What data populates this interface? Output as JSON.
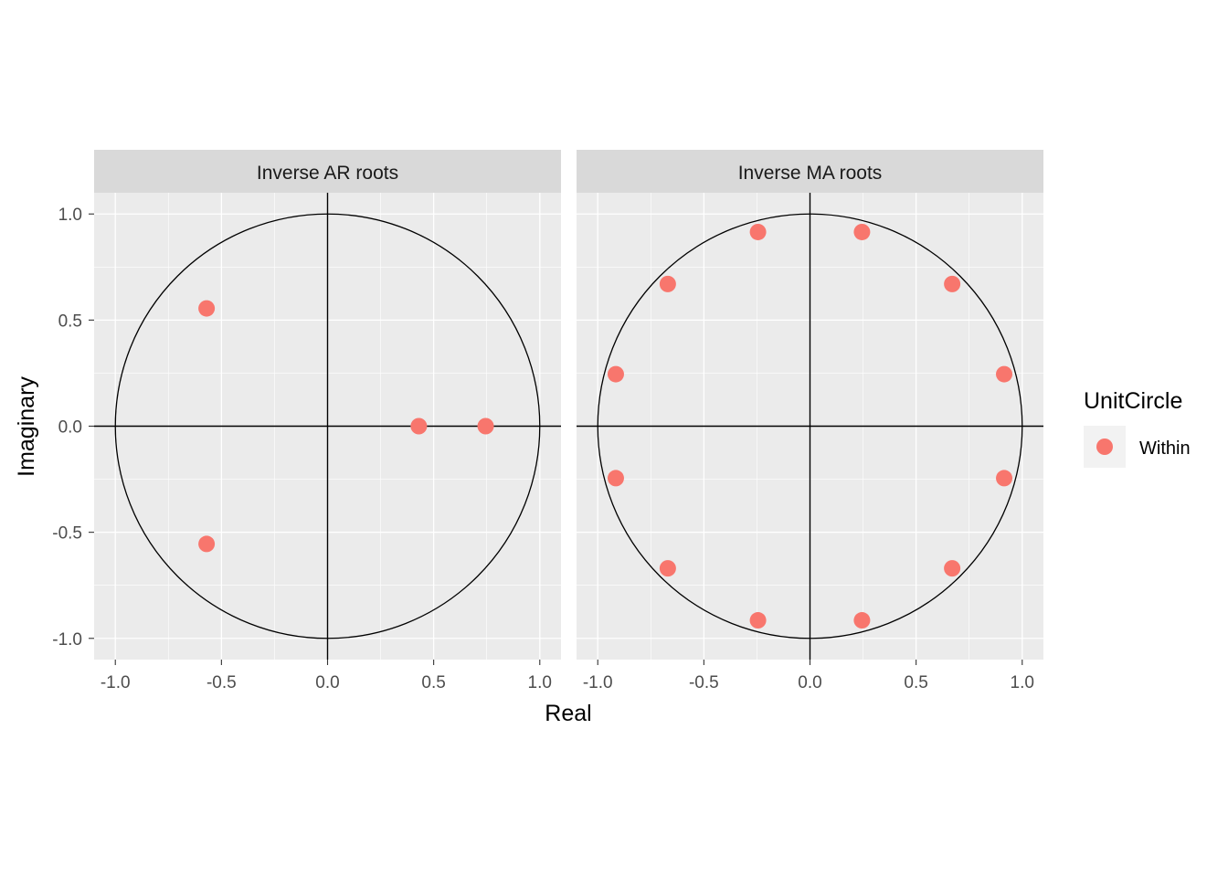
{
  "chart_data": {
    "type": "scatter",
    "xlabel": "Real",
    "ylabel": "Imaginary",
    "xlim": [
      -1.1,
      1.1
    ],
    "ylim": [
      -1.1,
      1.1
    ],
    "x_ticks": [
      -1.0,
      -0.5,
      0.0,
      0.5,
      1.0
    ],
    "y_ticks": [
      -1.0,
      -0.5,
      0.0,
      0.5,
      1.0
    ],
    "x_tick_labels": [
      "-1.0",
      "-0.5",
      "0.0",
      "0.5",
      "1.0"
    ],
    "y_tick_labels": [
      "-1.0",
      "-0.5",
      "0.0",
      "0.5",
      "1.0"
    ],
    "grid": true,
    "panel_background": "#ebebeb",
    "strip_background": "#d9d9d9",
    "point_color": "#f8766d",
    "legend": {
      "title": "UnitCircle",
      "position": "right",
      "entries": [
        {
          "label": "Within",
          "color": "#f8766d"
        }
      ]
    },
    "facets": [
      {
        "label": "Inverse AR roots",
        "points": [
          {
            "x": -0.57,
            "y": 0.555
          },
          {
            "x": -0.57,
            "y": -0.555
          },
          {
            "x": 0.43,
            "y": 0.0
          },
          {
            "x": 0.745,
            "y": 0.0
          }
        ]
      },
      {
        "label": "Inverse MA roots",
        "points": [
          {
            "x": 0.245,
            "y": 0.915
          },
          {
            "x": 0.67,
            "y": 0.67
          },
          {
            "x": 0.915,
            "y": 0.245
          },
          {
            "x": 0.915,
            "y": -0.245
          },
          {
            "x": 0.67,
            "y": -0.67
          },
          {
            "x": 0.245,
            "y": -0.915
          },
          {
            "x": -0.245,
            "y": -0.915
          },
          {
            "x": -0.67,
            "y": -0.67
          },
          {
            "x": -0.915,
            "y": -0.245
          },
          {
            "x": -0.915,
            "y": 0.245
          },
          {
            "x": -0.67,
            "y": 0.67
          },
          {
            "x": -0.245,
            "y": 0.915
          }
        ]
      }
    ]
  }
}
